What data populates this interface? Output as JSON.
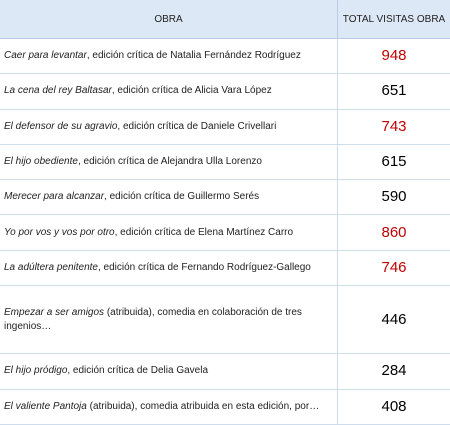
{
  "table": {
    "header": [
      "OBRA",
      "TOTAL VISITAS OBRA"
    ],
    "rows": [
      {
        "title": "Caer para levantar",
        "rest": ", edición crítica de Natalia Fernández Rodríguez",
        "visits": 948,
        "color": "#c00000"
      },
      {
        "title": "La cena del rey Baltasar",
        "rest": ", edición crítica de Alicia Vara López",
        "visits": 651,
        "color": "#000000"
      },
      {
        "title": "El defensor de su agravio",
        "rest": ", edición crítica de Daniele Crivellari",
        "visits": 743,
        "color": "#c00000"
      },
      {
        "title": "El hijo obediente",
        "rest": ", edición crítica de Alejandra Ulla Lorenzo",
        "visits": 615,
        "color": "#000000"
      },
      {
        "title": "Merecer para alcanzar",
        "rest": ", edición crítica de Guillermo Serés",
        "visits": 590,
        "color": "#000000"
      },
      {
        "title": "Yo por vos y vos por otro",
        "rest": ", edición crítica de Elena Martínez Carro",
        "visits": 860,
        "color": "#c00000"
      },
      {
        "title": "La adúltera penitente",
        "rest": ", edición crítica de Fernando Rodríguez-Gallego",
        "visits": 746,
        "color": "#c00000"
      },
      {
        "title": "Empezar a ser amigos",
        "rest": " (atribuida), comedia en colaboración de tres ingenios…",
        "visits": 446,
        "color": "#000000"
      },
      {
        "title": "El hijo pródigo",
        "rest": ", edición crítica de Delia Gavela",
        "visits": 284,
        "color": "#000000"
      },
      {
        "title": "El valiente Pantoja",
        "rest": " (atribuida), comedia atribuida en esta edición, por…",
        "visits": 408,
        "color": "#000000"
      }
    ]
  }
}
